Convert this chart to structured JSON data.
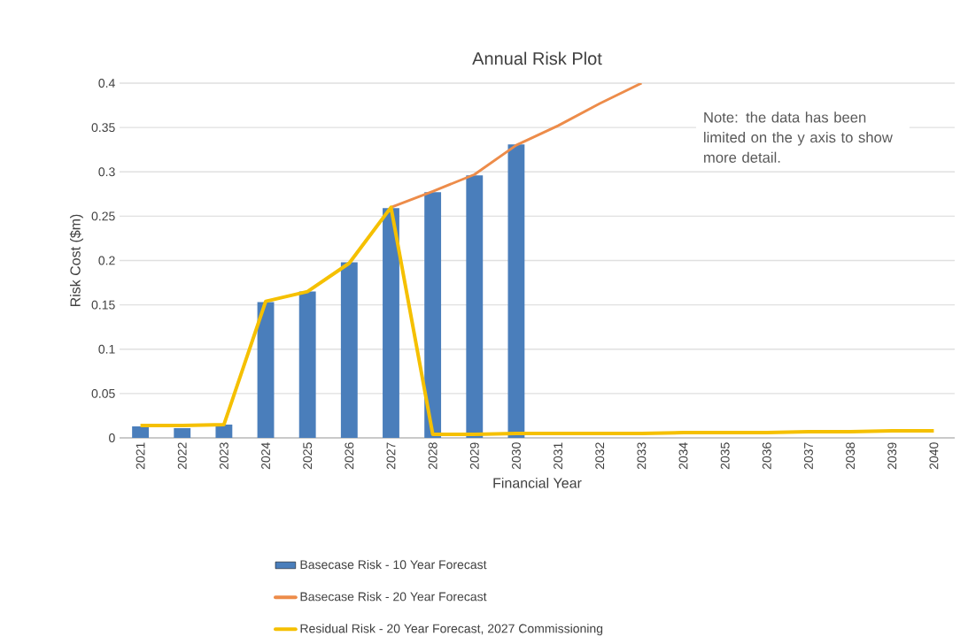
{
  "chart_data": {
    "type": "bar",
    "title": "Annual Risk Plot",
    "xlabel": "Financial Year",
    "ylabel": "Risk Cost ($m)",
    "categories": [
      "2021",
      "2022",
      "2023",
      "2024",
      "2025",
      "2026",
      "2027",
      "2028",
      "2029",
      "2030",
      "2031",
      "2032",
      "2033",
      "2034",
      "2035",
      "2036",
      "2037",
      "2038",
      "2039",
      "2040"
    ],
    "series": [
      {
        "name": "Basecase Risk - 10 Year Forecast",
        "color": "#4a7ebb",
        "values": [
          0.013,
          0.011,
          0.015,
          0.153,
          0.165,
          0.198,
          0.259,
          0.277,
          0.296,
          0.331,
          null,
          null,
          null,
          null,
          null,
          null,
          null,
          null,
          null,
          null
        ]
      },
      {
        "name": "Basecase Risk - 20 Year Forecast",
        "type": "line",
        "color": "#ed8c4a",
        "values": [
          null,
          null,
          null,
          null,
          null,
          null,
          0.26,
          0.278,
          0.297,
          0.33,
          0.352,
          0.377,
          0.4,
          null,
          null,
          null,
          null,
          null,
          null,
          null
        ]
      },
      {
        "name": "Residual Risk - 20 Year Forecast, 2027 Commissioning",
        "type": "line",
        "color": "#f5c000",
        "values": [
          0.014,
          0.014,
          0.015,
          0.154,
          0.165,
          0.197,
          0.26,
          0.004,
          0.004,
          0.005,
          0.005,
          0.005,
          0.005,
          0.006,
          0.006,
          0.006,
          0.007,
          0.007,
          0.008,
          0.008
        ]
      }
    ],
    "ylim": [
      0,
      0.4
    ],
    "yticks": [
      0,
      0.05,
      0.1,
      0.15,
      0.2,
      0.25,
      0.3,
      0.35,
      0.4
    ],
    "grid": "y",
    "legend": "bottom",
    "line_style": "solid",
    "marker": "none",
    "annotations": [
      "Note: the data has been limited on the y axis to show more detail."
    ]
  }
}
